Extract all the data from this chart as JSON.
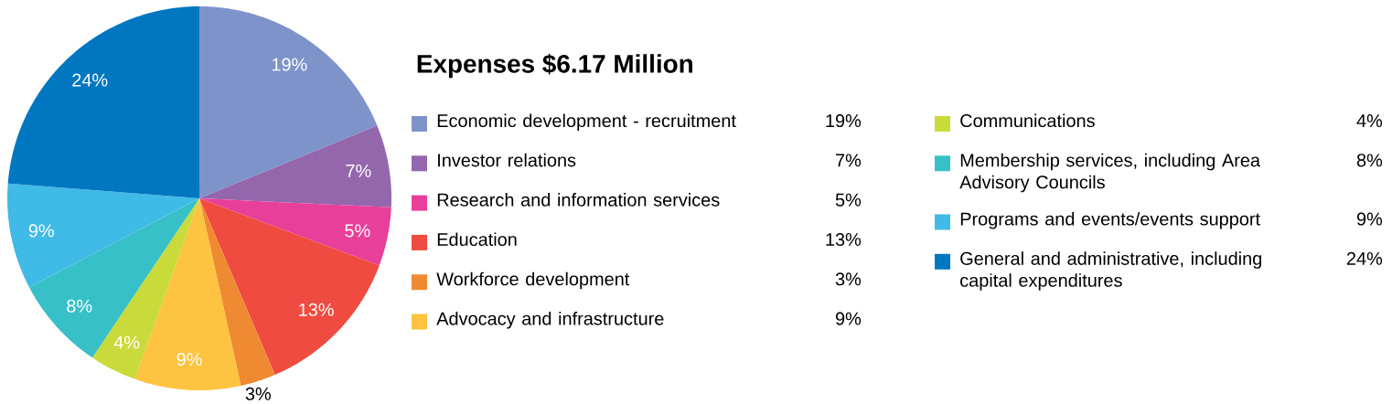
{
  "chart_data": {
    "type": "pie",
    "title": "Expenses $6.17 Million",
    "categories": [
      "Economic development - recruitment",
      "Investor relations",
      "Research and information services",
      "Education",
      "Workforce development",
      "Advocacy and infrastructure",
      "Communications",
      "Membership services, including Area Advisory Councils",
      "Programs and events/events support",
      "General and administrative, including capital expenditures"
    ],
    "values": [
      19,
      7,
      5,
      13,
      3,
      9,
      4,
      8,
      9,
      24
    ],
    "value_labels": [
      "19%",
      "7%",
      "5%",
      "13%",
      "3%",
      "9%",
      "4%",
      "8%",
      "9%",
      "24%"
    ],
    "colors": [
      "#7f93cb",
      "#9467ad",
      "#e8409a",
      "#ef4b40",
      "#f08a32",
      "#fec340",
      "#c9db3a",
      "#37c0c8",
      "#40bae6",
      "#0077c0"
    ],
    "legend": "right"
  }
}
